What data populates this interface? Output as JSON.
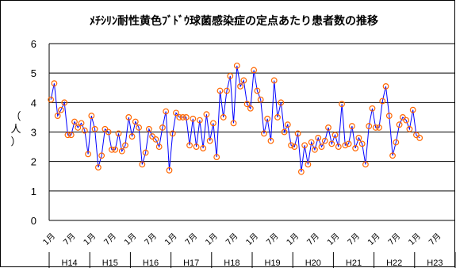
{
  "chart_data": {
    "type": "line",
    "title": "ﾒﾁｼﾘﾝ耐性黄色ﾌﾞﾄﾞｳ球菌感染症の定点あたり患者数の推移",
    "ylabel": [
      "（",
      "人",
      "）"
    ],
    "ylim": [
      0,
      6
    ],
    "yticks": [
      0,
      1,
      2,
      3,
      4,
      5,
      6
    ],
    "grid": true,
    "x_tick_labels": [
      "1月",
      "7月",
      "1月",
      "7月",
      "1月",
      "7月",
      "1月",
      "7月",
      "1月",
      "7月",
      "1月",
      "7月",
      "1月",
      "7月",
      "1月",
      "7月",
      "1月",
      "7月",
      "1月",
      "7月"
    ],
    "year_groups": [
      "H14",
      "H15",
      "H16",
      "H17",
      "H18",
      "H19",
      "H20",
      "H21",
      "H22",
      "H23"
    ],
    "line_color": "#0000ff",
    "marker_color": "#ff6600",
    "series": [
      {
        "values": [
          4.1,
          4.65,
          3.55,
          3.75,
          4.0,
          2.9,
          2.9,
          3.35,
          3.15,
          3.3,
          3.05,
          2.25,
          3.55,
          3.1,
          1.8,
          2.2,
          3.1,
          3.0,
          2.4,
          2.4,
          2.95,
          2.35,
          2.55,
          3.5,
          2.85,
          3.35,
          3.15,
          1.9,
          2.3,
          3.1,
          2.85,
          2.75,
          2.5,
          3.15,
          3.7,
          1.7,
          2.95,
          3.65,
          3.5,
          3.5,
          3.5,
          2.55,
          3.45,
          2.5,
          3.4,
          2.45,
          3.6,
          2.7,
          3.3,
          2.15,
          4.4,
          3.5,
          4.4,
          4.9,
          3.3,
          5.25,
          4.55,
          4.75,
          3.95,
          3.8,
          5.1,
          4.4,
          4.1,
          2.95,
          3.45,
          2.7,
          4.75,
          3.5,
          4.0,
          3.0,
          3.25,
          2.55,
          2.5,
          2.95,
          1.65,
          2.55,
          1.9,
          2.65,
          2.4,
          2.8,
          2.5,
          2.7,
          3.15,
          2.6,
          2.9,
          2.5,
          3.95,
          2.55,
          2.6,
          3.2,
          2.45,
          2.8,
          2.6,
          1.9,
          3.2,
          3.8,
          3.15,
          3.15,
          4.05,
          4.55,
          3.55,
          2.2,
          2.65,
          3.25,
          3.5,
          3.4,
          3.1,
          3.75,
          2.9,
          2.8
        ]
      }
    ]
  }
}
